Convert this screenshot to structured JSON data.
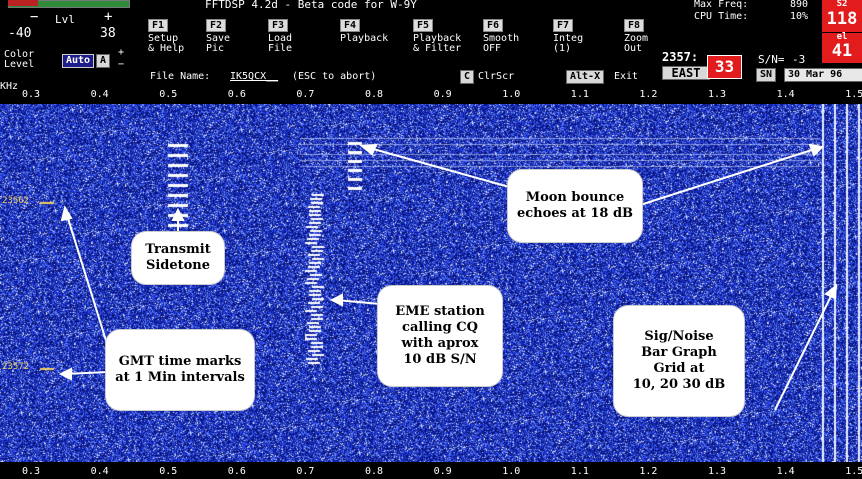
{
  "header": {
    "title_fragment": "FFTDSP 4.2d - Beta code for W-9Y",
    "level_label": "Lvl",
    "level_min": "-40",
    "level_max": "38",
    "color_level_label": "Color\nLevel",
    "auto_btn": "Auto",
    "a_btn": "A",
    "plus": "+",
    "minus": "−",
    "max_freq_label": "Max Freq:",
    "max_freq_value": "890",
    "cpu_label": "CPU Time:",
    "cpu_value": "10%",
    "red_top_value": "118",
    "red_bottom_value": "41",
    "red_top_tag": "S2",
    "red_bottom_tag": "el",
    "file_name_label": "File Name:",
    "file_name_value": "IK5QCX__",
    "file_hint": "(ESC to abort)",
    "clr_key": "C",
    "clr_label": "ClrScr",
    "alt_key": "Alt-X",
    "exit_label": "Exit",
    "time_value": "2357:",
    "direction": "EAST",
    "direction_value": "33",
    "sn_label": "S/N=",
    "sn_value": "-3",
    "sn_key": "SN",
    "date": "30 Mar 96",
    "khz_label": "KHz"
  },
  "function_keys": [
    {
      "key": "F1",
      "label": "Setup\n& Help"
    },
    {
      "key": "F2",
      "label": "Save\nPic"
    },
    {
      "key": "F3",
      "label": "Load\nFile"
    },
    {
      "key": "F4",
      "label": "Playback"
    },
    {
      "key": "F5",
      "label": "Playback\n& Filter"
    },
    {
      "key": "F6",
      "label": "Smooth\nOFF"
    },
    {
      "key": "F7",
      "label": "Integ\n(1)"
    },
    {
      "key": "F8",
      "label": "Zoom\nOut"
    }
  ],
  "freq_ticks_top": [
    "0.3",
    "0.4",
    "0.5",
    "0.6",
    "0.7",
    "0.8",
    "0.9",
    "1.0",
    "1.1",
    "1.2",
    "1.3",
    "1.4",
    "1.5"
  ],
  "freq_ticks_bottom": [
    "0.3",
    "0.4",
    "0.5",
    "0.6",
    "0.7",
    "0.8",
    "0.9",
    "1.0",
    "1.1",
    "1.2",
    "1.3",
    "1.4",
    "1.5"
  ],
  "time_marks": [
    "23562",
    "23572"
  ],
  "annotations": {
    "moon": "Moon bounce\nechoes at 18 dB",
    "transmit": "Transmit\nSidetone",
    "eme": "EME station\ncalling CQ\nwith aprox\n10 dB S/N",
    "gmt": "GMT time marks\nat 1 Min intervals",
    "signoise": "Sig/Noise\nBar Graph\nGrid at\n10, 20 30 dB"
  },
  "colors": {
    "waterfall_bg": "#0a1f8a",
    "noise_light": "#5b7ce8",
    "red_display": "#e21c1c",
    "tick_yellow": "#f0d060"
  }
}
